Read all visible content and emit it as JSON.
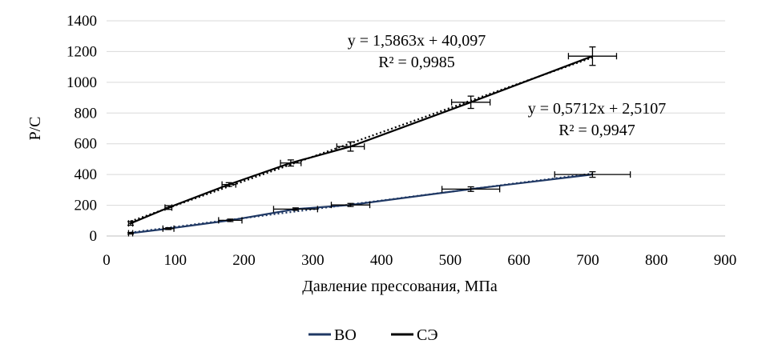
{
  "chart_data": {
    "type": "scatter",
    "xlabel": "Давление прессования, МПа",
    "ylabel": "P/C",
    "xlim": [
      0,
      900
    ],
    "ylim": [
      0,
      1400
    ],
    "x_ticks": [
      0,
      100,
      200,
      300,
      400,
      500,
      600,
      700,
      800,
      900
    ],
    "y_ticks": [
      0,
      200,
      400,
      600,
      800,
      1000,
      1200,
      1400
    ],
    "x_tick_labels": [
      "0",
      "100",
      "200",
      "300",
      "400",
      "500",
      "600",
      "700",
      "800",
      "900"
    ],
    "y_tick_labels": [
      "0",
      "200",
      "400",
      "600",
      "800",
      "1000",
      "1200",
      "1400"
    ],
    "grid": "horizontal",
    "legend_position": "bottom",
    "series": [
      {
        "name": "ВО",
        "color": "#1f3864",
        "points": [
          {
            "x": 35,
            "y": 18,
            "xerr": 3,
            "yerr": 5
          },
          {
            "x": 90,
            "y": 48,
            "xerr": 8,
            "yerr": 6
          },
          {
            "x": 180,
            "y": 102,
            "xerr": 17,
            "yerr": 8
          },
          {
            "x": 275,
            "y": 175,
            "xerr": 32,
            "yerr": 8
          },
          {
            "x": 355,
            "y": 202,
            "xerr": 28,
            "yerr": 10
          },
          {
            "x": 530,
            "y": 305,
            "xerr": 42,
            "yerr": 15
          },
          {
            "x": 707,
            "y": 400,
            "xerr": 55,
            "yerr": 18
          }
        ],
        "trendline": {
          "slope": 0.5712,
          "intercept": 2.5107,
          "equation": "y = 0,5712x + 2,5107",
          "r2": "R² = 0,9947"
        }
      },
      {
        "name": "СЭ",
        "color": "#000000",
        "points": [
          {
            "x": 35,
            "y": 82,
            "xerr": 3,
            "yerr": 12
          },
          {
            "x": 90,
            "y": 185,
            "xerr": 5,
            "yerr": 12
          },
          {
            "x": 178,
            "y": 335,
            "xerr": 10,
            "yerr": 12
          },
          {
            "x": 268,
            "y": 475,
            "xerr": 15,
            "yerr": 20
          },
          {
            "x": 355,
            "y": 582,
            "xerr": 20,
            "yerr": 30
          },
          {
            "x": 530,
            "y": 870,
            "xerr": 28,
            "yerr": 40
          },
          {
            "x": 707,
            "y": 1170,
            "xerr": 35,
            "yerr": 60
          }
        ],
        "trendline": {
          "slope": 1.5863,
          "intercept": 40.097,
          "equation": "y = 1,5863x + 40,097",
          "r2": "R² = 0,9985"
        }
      }
    ]
  }
}
